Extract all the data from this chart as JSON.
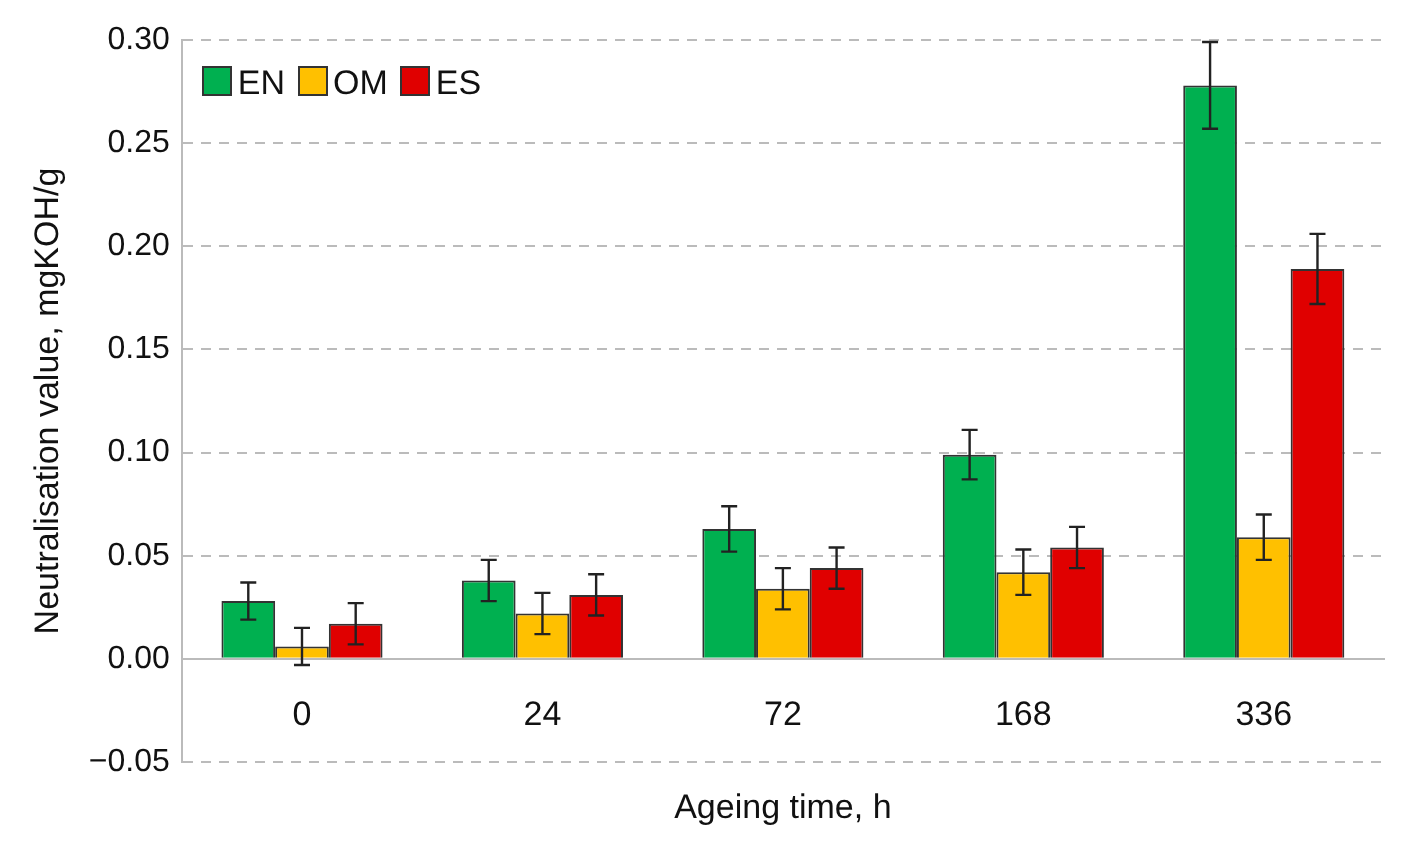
{
  "chart_data": {
    "type": "bar",
    "xlabel": "Ageing time, h",
    "ylabel": "Neutralisation value, mgKOH/g",
    "categories": [
      "0",
      "24",
      "72",
      "168",
      "336"
    ],
    "series": [
      {
        "name": "EN",
        "color": "#00b050",
        "values": [
          0.028,
          0.038,
          0.063,
          0.099,
          0.278
        ],
        "errors": [
          0.009,
          0.01,
          0.011,
          0.012,
          0.021
        ]
      },
      {
        "name": "OM",
        "color": "#ffc000",
        "values": [
          0.006,
          0.022,
          0.034,
          0.042,
          0.059
        ],
        "errors": [
          0.009,
          0.01,
          0.01,
          0.011,
          0.011
        ]
      },
      {
        "name": "ES",
        "color": "#e00000",
        "values": [
          0.017,
          0.031,
          0.044,
          0.054,
          0.189
        ],
        "errors": [
          0.01,
          0.01,
          0.01,
          0.01,
          0.017
        ]
      }
    ],
    "ylim": [
      -0.05,
      0.3
    ],
    "yticks": [
      {
        "value": -0.05,
        "label": "−0.05"
      },
      {
        "value": 0,
        "label": "0.00"
      },
      {
        "value": 0.05,
        "label": "0.05"
      },
      {
        "value": 0.1,
        "label": "0.10"
      },
      {
        "value": 0.15,
        "label": "0.15"
      },
      {
        "value": 0.2,
        "label": "0.20"
      },
      {
        "value": 0.25,
        "label": "0.25"
      },
      {
        "value": 0.3,
        "label": "0.30"
      }
    ],
    "grid": "y",
    "legend": "top left"
  }
}
